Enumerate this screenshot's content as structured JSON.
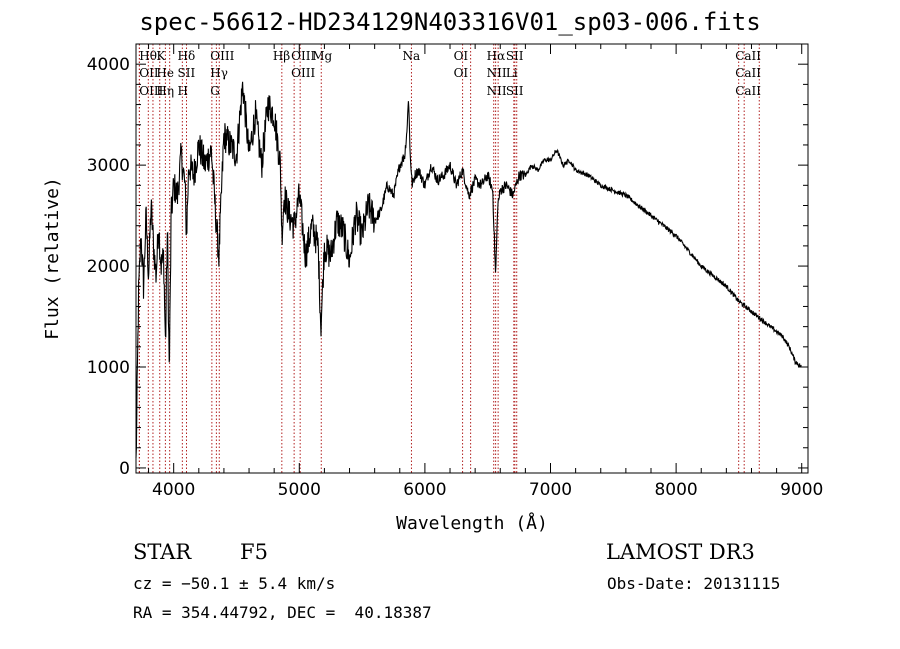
{
  "chart_data": {
    "type": "line",
    "title": "spec-56612-HD234129N403316V01_sp03-006.fits",
    "xlabel": "Wavelength (Å)",
    "ylabel": "Flux (relative)",
    "xlim": [
      3700,
      9050
    ],
    "ylim": [
      -50,
      4200
    ],
    "xticks": [
      4000,
      5000,
      6000,
      7000,
      8000,
      9000
    ],
    "yticks": [
      0,
      1000,
      2000,
      3000,
      4000
    ],
    "spectrum_anchors": {
      "x": [
        3700,
        3705,
        3720,
        3740,
        3760,
        3780,
        3800,
        3820,
        3840,
        3860,
        3880,
        3900,
        3920,
        3935,
        3950,
        3965,
        3980,
        4000,
        4030,
        4060,
        4090,
        4102,
        4120,
        4160,
        4200,
        4250,
        4300,
        4340,
        4360,
        4400,
        4450,
        4500,
        4550,
        4600,
        4650,
        4700,
        4750,
        4800,
        4850,
        4861,
        4880,
        4920,
        4960,
        5000,
        5050,
        5100,
        5150,
        5172,
        5200,
        5250,
        5300,
        5350,
        5400,
        5450,
        5500,
        5550,
        5600,
        5650,
        5700,
        5750,
        5800,
        5840,
        5860,
        5870,
        5880,
        5893,
        5900,
        5920,
        5950,
        6000,
        6050,
        6100,
        6150,
        6200,
        6250,
        6300,
        6350,
        6400,
        6450,
        6500,
        6540,
        6563,
        6580,
        6600,
        6650,
        6700,
        6750,
        6800,
        6850,
        6900,
        6950,
        7000,
        7050,
        7100,
        7150,
        7200,
        7300,
        7400,
        7500,
        7600,
        7700,
        7800,
        7900,
        8000,
        8100,
        8200,
        8300,
        8400,
        8500,
        8600,
        8700,
        8800,
        8850,
        8900,
        8950,
        9000
      ],
      "y": [
        50,
        400,
        1700,
        2300,
        1800,
        2500,
        1900,
        2600,
        2200,
        1900,
        2400,
        2000,
        2100,
        1200,
        2400,
        900,
        2500,
        2800,
        2700,
        3100,
        2800,
        2300,
        3000,
        2900,
        3200,
        3000,
        3150,
        2400,
        2100,
        3300,
        3200,
        3100,
        3800,
        3100,
        3500,
        3000,
        3600,
        3500,
        3000,
        2300,
        2700,
        2500,
        2400,
        2700,
        2100,
        2400,
        2200,
        1400,
        2200,
        2100,
        2450,
        2350,
        2050,
        2500,
        2300,
        2600,
        2450,
        2550,
        2800,
        2700,
        3000,
        3100,
        3400,
        3700,
        3200,
        2900,
        2800,
        2900,
        2950,
        2800,
        3000,
        2850,
        2900,
        3000,
        2800,
        2950,
        2700,
        2850,
        2800,
        2900,
        2750,
        1900,
        2600,
        2750,
        2800,
        2700,
        2900,
        2900,
        3000,
        2950,
        3050,
        3050,
        3150,
        3000,
        3050,
        2950,
        2900,
        2800,
        2750,
        2700,
        2600,
        2500,
        2400,
        2300,
        2150,
        2000,
        1900,
        1800,
        1650,
        1550,
        1450,
        1350,
        1300,
        1200,
        1050,
        1000
      ]
    },
    "line_groups": [
      {
        "names": [
          "Hθ",
          "OII",
          "OIII"
        ],
        "wavelengths": [
          3798,
          3727,
          3727
        ]
      },
      {
        "names": [
          "K",
          "He",
          "Hη"
        ],
        "wavelengths": [
          3934,
          3889,
          3835
        ]
      },
      {
        "names": [
          "Hδ",
          "SII",
          "H"
        ],
        "wavelengths": [
          4102,
          4069,
          3968
        ]
      },
      {
        "names": [
          "OIII",
          "Hγ",
          "G"
        ],
        "wavelengths": [
          4363,
          4340,
          4304
        ]
      },
      {
        "names": [
          "Hβ"
        ],
        "wavelengths": [
          4861
        ]
      },
      {
        "names": [
          "OIII",
          "OIII"
        ],
        "wavelengths": [
          5007,
          4959
        ]
      },
      {
        "names": [
          "Mg"
        ],
        "wavelengths": [
          5175
        ]
      },
      {
        "names": [
          "Na"
        ],
        "wavelengths": [
          5893
        ]
      },
      {
        "names": [
          "OI",
          "OI"
        ],
        "wavelengths": [
          6300,
          6364
        ]
      },
      {
        "names": [
          "Hα",
          "NII",
          "NII"
        ],
        "wavelengths": [
          6563,
          6583,
          6548
        ]
      },
      {
        "names": [
          "SII",
          "Li",
          "SII"
        ],
        "wavelengths": [
          6716,
          6708,
          6731
        ]
      },
      {
        "names": [
          "CaII",
          "CaII",
          "CaII"
        ],
        "wavelengths": [
          8542,
          8498,
          8662
        ]
      }
    ],
    "line_color": "#b22222",
    "spectrum_color": "#000000"
  },
  "info": {
    "object_class": "STAR",
    "subclass": "F5",
    "survey": "LAMOST DR3",
    "cz": "cz = −50.1 ± 5.4 km/s",
    "obs_date": "Obs-Date: 20131115",
    "coords": "RA = 354.44792, DEC =  40.18387"
  }
}
